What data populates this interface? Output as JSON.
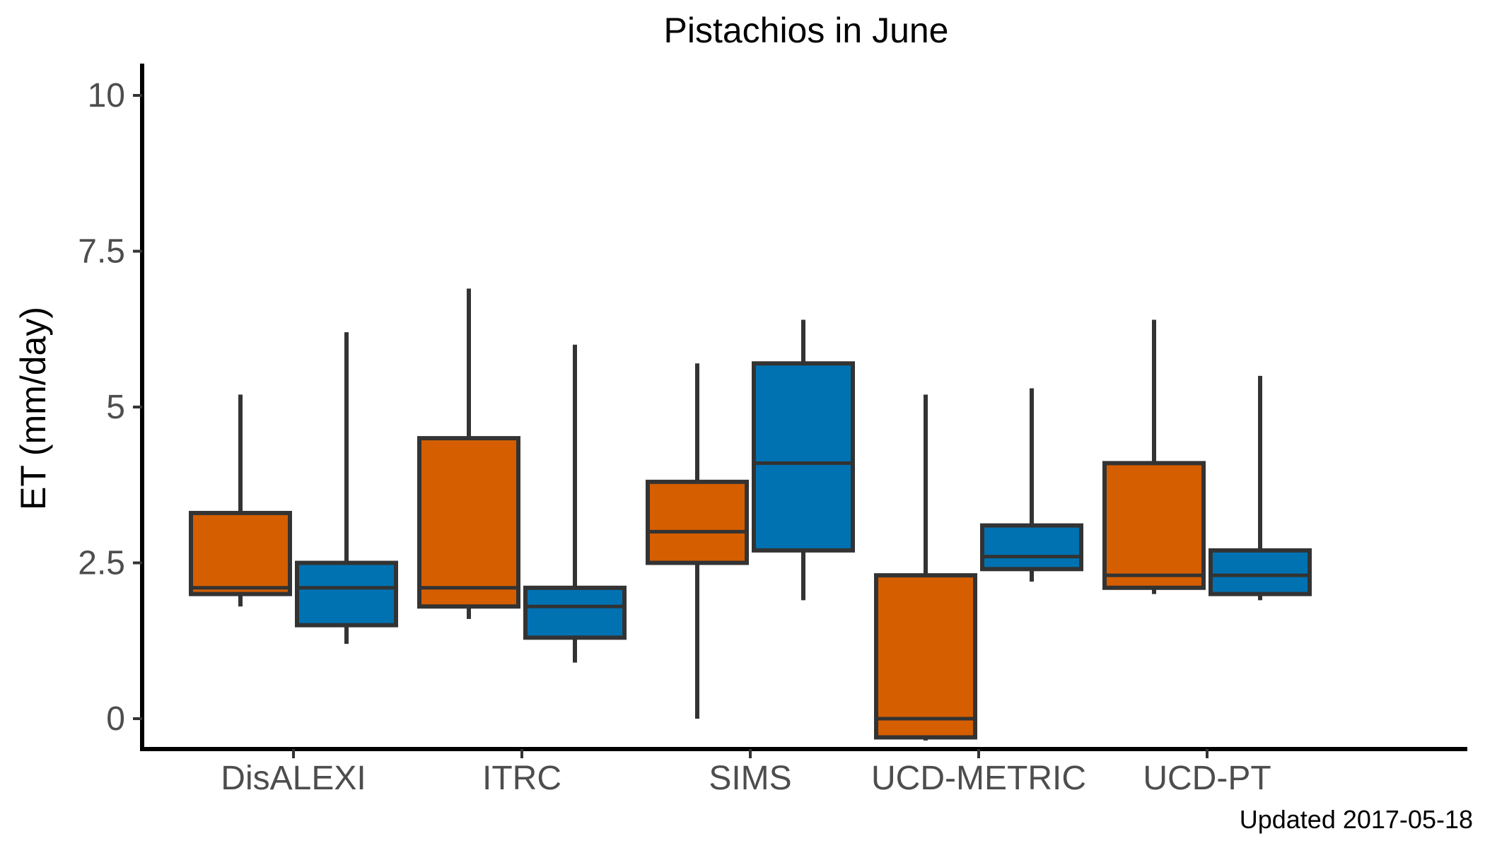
{
  "chart_data": {
    "type": "box",
    "title": "Pistachios in June",
    "ylabel": "ET (mm/day)",
    "xlabel": "",
    "ylim": [
      -0.5,
      10.5
    ],
    "yticks": [
      0,
      2.5,
      5,
      7.5,
      10
    ],
    "ytick_labels": [
      "0",
      "2.5",
      "5",
      "7.5",
      "10"
    ],
    "grid": false,
    "legend": "none",
    "categories": [
      "DisALEXI",
      "ITRC",
      "SIMS",
      "UCD-METRIC",
      "UCD-PT"
    ],
    "series": [
      {
        "color": "#d55e00",
        "boxes": [
          {
            "min": 1.8,
            "q1": 2.0,
            "median": 2.1,
            "q3": 3.3,
            "max": 5.2
          },
          {
            "min": 1.6,
            "q1": 1.8,
            "median": 2.1,
            "q3": 4.5,
            "max": 6.9
          },
          {
            "min": 0.0,
            "q1": 2.5,
            "median": 3.0,
            "q3": 3.8,
            "max": 5.7
          },
          {
            "min": -0.35,
            "q1": -0.3,
            "median": 0.0,
            "q3": 2.3,
            "max": 5.2
          },
          {
            "min": 2.0,
            "q1": 2.1,
            "median": 2.3,
            "q3": 4.1,
            "max": 6.4
          }
        ]
      },
      {
        "color": "#0072b2",
        "boxes": [
          {
            "min": 1.2,
            "q1": 1.5,
            "median": 2.1,
            "q3": 2.5,
            "max": 6.2
          },
          {
            "min": 0.9,
            "q1": 1.3,
            "median": 1.8,
            "q3": 2.1,
            "max": 6.0
          },
          {
            "min": 1.9,
            "q1": 2.7,
            "median": 4.1,
            "q3": 5.7,
            "max": 6.4
          },
          {
            "min": 2.2,
            "q1": 2.4,
            "median": 2.6,
            "q3": 3.1,
            "max": 5.3
          },
          {
            "min": 1.9,
            "q1": 2.0,
            "median": 2.3,
            "q3": 2.7,
            "max": 5.5
          }
        ]
      }
    ],
    "caption": "Updated  2017-05-18"
  }
}
